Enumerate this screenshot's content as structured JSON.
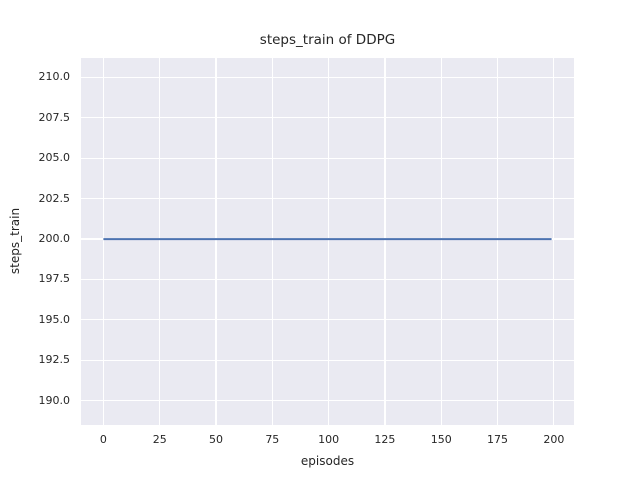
{
  "chart_data": {
    "type": "line",
    "title": "steps_train of DDPG",
    "xlabel": "episodes",
    "ylabel": "steps_train",
    "x_ticks": [
      0,
      25,
      50,
      75,
      100,
      125,
      150,
      175,
      200
    ],
    "x_tick_labels": [
      "0",
      "25",
      "50",
      "75",
      "100",
      "125",
      "150",
      "175",
      "200"
    ],
    "y_ticks": [
      190.0,
      192.5,
      195.0,
      197.5,
      200.0,
      202.5,
      205.0,
      207.5,
      210.0
    ],
    "y_tick_labels": [
      "190.0",
      "192.5",
      "195.0",
      "197.5",
      "200.0",
      "202.5",
      "205.0",
      "207.5",
      "210.0"
    ],
    "xlim": [
      -9.95,
      208.95
    ],
    "ylim": [
      188.5,
      211.2
    ],
    "grid": true,
    "legend_position": "none",
    "colors": {
      "plot_background": "#eaeaf2",
      "grid": "#ffffff",
      "text": "#262626",
      "line": "#4c72b0"
    },
    "series": [
      {
        "name": "steps_train",
        "color": "#4c72b0",
        "x": [
          0,
          199
        ],
        "y": [
          200,
          200
        ]
      }
    ]
  }
}
